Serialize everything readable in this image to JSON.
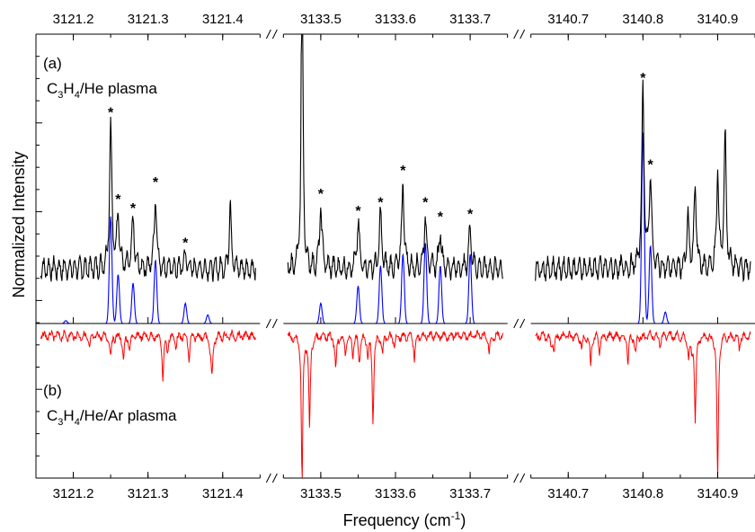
{
  "chart_data": {
    "type": "line",
    "title": "",
    "xlabel": "Frequency (cm",
    "xlabel_sup": "-1",
    "xlabel_end": ")",
    "ylabel": "Normalized Intensity",
    "segments": [
      {
        "xlim": [
          3121.15,
          3121.45
        ],
        "ticks": [
          3121.2,
          3121.3,
          3121.4
        ],
        "tick_labels": [
          "3121.2",
          "3121.3",
          "3121.4"
        ]
      },
      {
        "xlim": [
          3133.45,
          3133.75
        ],
        "ticks": [
          3133.5,
          3133.6,
          3133.7
        ],
        "tick_labels": [
          "3133.5",
          "3133.6",
          "3133.7"
        ]
      },
      {
        "xlim": [
          3140.65,
          3140.95
        ],
        "ticks": [
          3140.7,
          3140.8,
          3140.9
        ],
        "tick_labels": [
          "3140.7",
          "3140.8",
          "3140.9"
        ]
      }
    ],
    "panel_a": {
      "label": "(a)",
      "condition_parts": [
        "C",
        "3",
        "H",
        "4",
        "/He plasma"
      ],
      "star_marker": "*",
      "starred_peaks": [
        {
          "x": 3121.25,
          "y": 0.7
        },
        {
          "x": 3121.26,
          "y": 0.4
        },
        {
          "x": 3121.28,
          "y": 0.37
        },
        {
          "x": 3121.31,
          "y": 0.46
        },
        {
          "x": 3121.35,
          "y": 0.25
        },
        {
          "x": 3133.5,
          "y": 0.42
        },
        {
          "x": 3133.55,
          "y": 0.36
        },
        {
          "x": 3133.58,
          "y": 0.39
        },
        {
          "x": 3133.61,
          "y": 0.5
        },
        {
          "x": 3133.64,
          "y": 0.39
        },
        {
          "x": 3133.66,
          "y": 0.34
        },
        {
          "x": 3133.7,
          "y": 0.35
        },
        {
          "x": 3140.8,
          "y": 0.82
        },
        {
          "x": 3140.81,
          "y": 0.52
        }
      ],
      "simulated_series": {
        "name": "",
        "color": "#0000ff",
        "peaks": [
          {
            "x": 3121.19,
            "h": 0.01
          },
          {
            "x": 3121.25,
            "h": 0.37
          },
          {
            "x": 3121.26,
            "h": 0.17
          },
          {
            "x": 3121.28,
            "h": 0.14
          },
          {
            "x": 3121.31,
            "h": 0.22
          },
          {
            "x": 3121.35,
            "h": 0.07
          },
          {
            "x": 3121.38,
            "h": 0.03
          },
          {
            "x": 3133.45,
            "h": 0.05
          },
          {
            "x": 3133.5,
            "h": 0.07
          },
          {
            "x": 3133.55,
            "h": 0.13
          },
          {
            "x": 3133.58,
            "h": 0.2
          },
          {
            "x": 3133.61,
            "h": 0.24
          },
          {
            "x": 3133.64,
            "h": 0.28
          },
          {
            "x": 3133.66,
            "h": 0.2
          },
          {
            "x": 3133.7,
            "h": 0.24
          },
          {
            "x": 3140.8,
            "h": 0.66
          },
          {
            "x": 3140.81,
            "h": 0.27
          },
          {
            "x": 3140.83,
            "h": 0.04
          }
        ]
      },
      "observed_series": {
        "name": "",
        "color": "#000000"
      }
    },
    "panel_b": {
      "label": "(b)",
      "condition_parts": [
        "C",
        "3",
        "H",
        "4",
        "/He/Ar plasma"
      ],
      "series": {
        "name": "",
        "color": "#ff0000"
      }
    },
    "grid": false,
    "legend": "none"
  }
}
